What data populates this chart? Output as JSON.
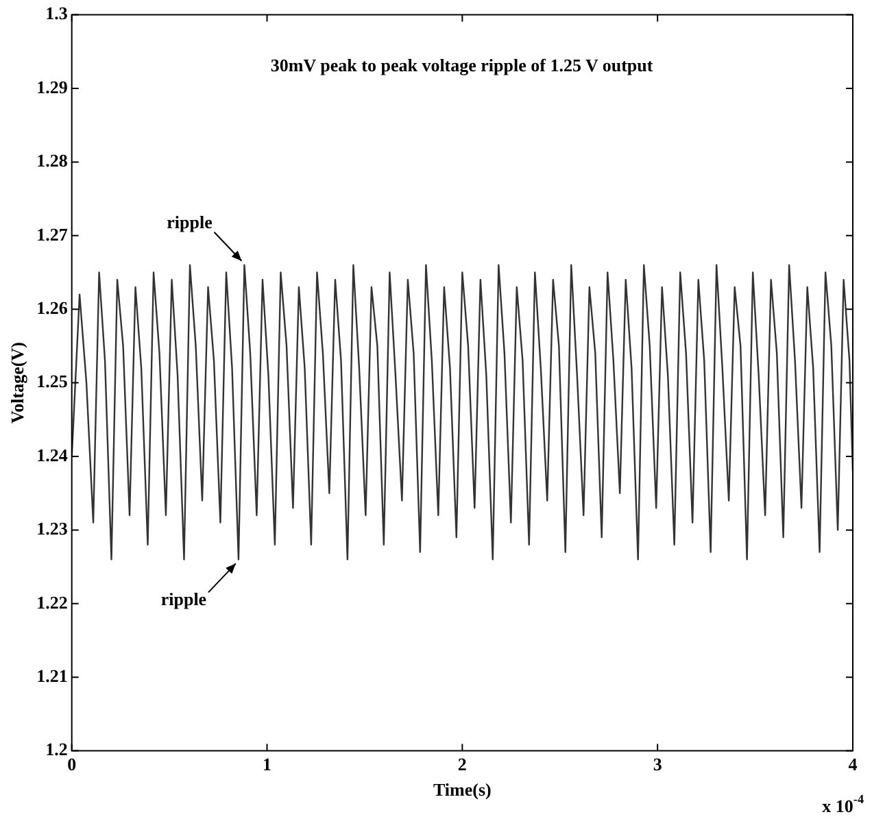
{
  "chart_data": {
    "type": "line",
    "title": "30mV peak to peak voltage ripple of 1.25 V output",
    "xlabel": "Time(s)",
    "ylabel": "Voltage(V)",
    "annotations": [
      {
        "text": "ripple",
        "x": 0.884,
        "y": 1.266
      },
      {
        "text": "ripple",
        "x": 0.854,
        "y": 1.226
      },
      "x 10$^{-4}$"
    ],
    "xlim": [
      0,
      4
    ],
    "xticks": [
      0,
      1,
      2,
      3,
      4
    ],
    "ylim": [
      1.2,
      1.3
    ],
    "yticks": [
      1.2,
      1.21,
      1.22,
      1.23,
      1.24,
      1.25,
      1.26,
      1.27,
      1.28,
      1.29,
      1.3
    ],
    "grid": false,
    "legend": false,
    "marker": "none",
    "line_style": "solid",
    "series": [
      {
        "color": "#333333",
        "x": [
          0,
          0.04,
          0.075,
          0.11,
          0.14,
          0.17,
          0.203,
          0.233,
          0.263,
          0.296,
          0.326,
          0.356,
          0.389,
          0.419,
          0.449,
          0.482,
          0.512,
          0.542,
          0.575,
          0.605,
          0.635,
          0.668,
          0.698,
          0.728,
          0.761,
          0.791,
          0.821,
          0.854,
          0.884,
          0.914,
          0.947,
          0.977,
          1.007,
          1.04,
          1.07,
          1.1,
          1.133,
          1.163,
          1.193,
          1.226,
          1.256,
          1.286,
          1.319,
          1.349,
          1.379,
          1.412,
          1.442,
          1.472,
          1.505,
          1.535,
          1.565,
          1.598,
          1.628,
          1.658,
          1.691,
          1.721,
          1.751,
          1.784,
          1.814,
          1.844,
          1.877,
          1.907,
          1.937,
          1.97,
          2.0,
          2.03,
          2.063,
          2.093,
          2.123,
          2.156,
          2.186,
          2.216,
          2.249,
          2.279,
          2.309,
          2.342,
          2.372,
          2.402,
          2.435,
          2.465,
          2.495,
          2.528,
          2.558,
          2.588,
          2.621,
          2.651,
          2.681,
          2.714,
          2.744,
          2.774,
          2.807,
          2.837,
          2.867,
          2.9,
          2.93,
          2.96,
          2.993,
          3.023,
          3.053,
          3.086,
          3.116,
          3.146,
          3.179,
          3.209,
          3.239,
          3.272,
          3.302,
          3.332,
          3.365,
          3.395,
          3.425,
          3.458,
          3.488,
          3.518,
          3.551,
          3.581,
          3.611,
          3.644,
          3.674,
          3.704,
          3.737,
          3.767,
          3.797,
          3.83,
          3.86,
          3.89,
          3.923,
          3.953,
          3.983,
          4.0
        ],
        "values": [
          1.24,
          1.262,
          1.25,
          1.231,
          1.265,
          1.253,
          1.226,
          1.264,
          1.255,
          1.232,
          1.263,
          1.252,
          1.228,
          1.265,
          1.254,
          1.232,
          1.264,
          1.251,
          1.226,
          1.266,
          1.255,
          1.234,
          1.263,
          1.253,
          1.231,
          1.265,
          1.252,
          1.226,
          1.266,
          1.254,
          1.232,
          1.264,
          1.251,
          1.228,
          1.265,
          1.255,
          1.233,
          1.263,
          1.252,
          1.228,
          1.265,
          1.254,
          1.235,
          1.264,
          1.253,
          1.226,
          1.266,
          1.252,
          1.232,
          1.263,
          1.255,
          1.228,
          1.265,
          1.251,
          1.234,
          1.264,
          1.254,
          1.227,
          1.266,
          1.253,
          1.232,
          1.263,
          1.252,
          1.229,
          1.265,
          1.255,
          1.233,
          1.264,
          1.251,
          1.226,
          1.266,
          1.254,
          1.231,
          1.263,
          1.253,
          1.228,
          1.265,
          1.252,
          1.234,
          1.264,
          1.255,
          1.227,
          1.266,
          1.251,
          1.232,
          1.263,
          1.254,
          1.229,
          1.265,
          1.253,
          1.235,
          1.264,
          1.252,
          1.226,
          1.266,
          1.255,
          1.233,
          1.263,
          1.251,
          1.228,
          1.265,
          1.254,
          1.231,
          1.264,
          1.253,
          1.227,
          1.266,
          1.252,
          1.234,
          1.263,
          1.255,
          1.226,
          1.265,
          1.251,
          1.232,
          1.264,
          1.254,
          1.229,
          1.266,
          1.253,
          1.233,
          1.263,
          1.252,
          1.227,
          1.265,
          1.255,
          1.23,
          1.264,
          1.253,
          1.238
        ]
      }
    ]
  }
}
